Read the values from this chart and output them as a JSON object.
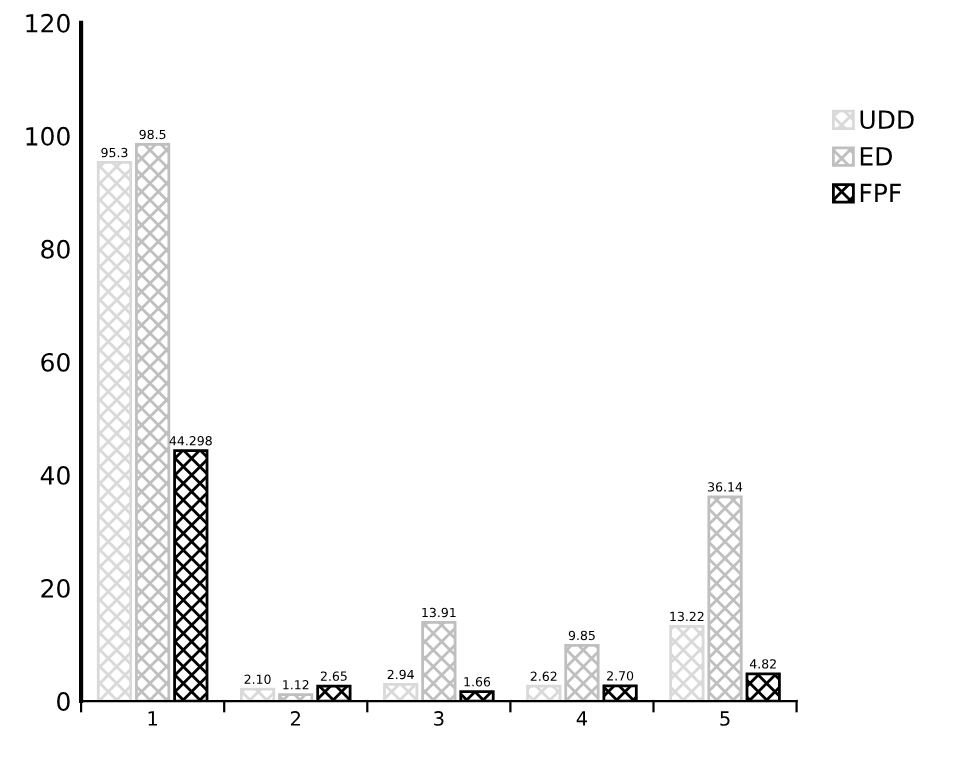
{
  "chart_data": {
    "type": "bar",
    "categories": [
      "1",
      "2",
      "3",
      "4",
      "5"
    ],
    "series": [
      {
        "name": "UDD",
        "color": "#d9d9d9",
        "values": [
          95.3,
          2.1,
          2.94,
          2.62,
          13.22
        ],
        "value_labels": [
          "95.3",
          "2.10",
          "2.94",
          "2.62",
          "13.22"
        ]
      },
      {
        "name": "ED",
        "color": "#bfbfbf",
        "values": [
          98.5,
          1.12,
          13.91,
          9.85,
          36.14
        ],
        "value_labels": [
          "98.5",
          "1.12",
          "13.91",
          "9.85",
          "36.14"
        ]
      },
      {
        "name": "FPF",
        "color": "#000000",
        "values": [
          44.298,
          2.65,
          1.66,
          2.7,
          4.82
        ],
        "value_labels": [
          "44.298",
          "2.65",
          "1.66",
          "2.70",
          "4.82"
        ]
      }
    ],
    "ylim": [
      0,
      120
    ],
    "yticks": [
      0,
      20,
      40,
      60,
      80,
      100,
      120
    ],
    "grid": false,
    "legend": "right"
  }
}
